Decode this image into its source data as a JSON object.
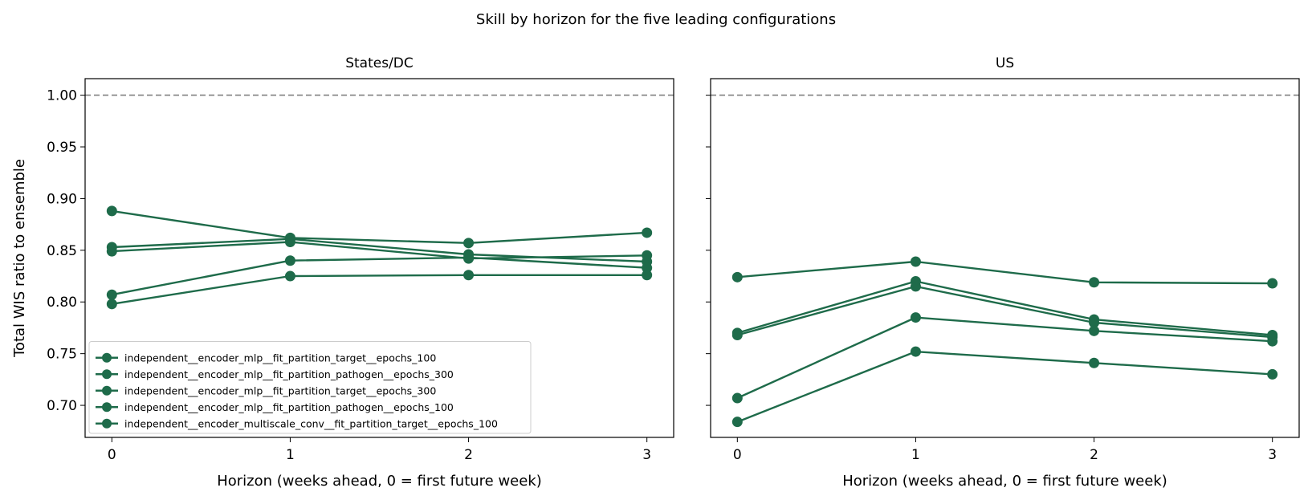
{
  "title": "Skill by horizon for the five leading configurations",
  "colors": {
    "series": "#1e6b4a",
    "reference": "#808080"
  },
  "chart_data": [
    {
      "type": "line",
      "title": "States/DC",
      "xlabel": "Horizon (weeks ahead, 0 = first future week)",
      "ylabel": "Total WIS ratio to ensemble",
      "x": [
        0,
        1,
        2,
        3
      ],
      "xticks": [
        "0",
        "1",
        "2",
        "3"
      ],
      "yticks": [
        "0.70",
        "0.75",
        "0.80",
        "0.85",
        "0.90",
        "0.95",
        "1.00"
      ],
      "xlim": [
        -0.15,
        3.15
      ],
      "ylim": [
        0.669,
        1.016
      ],
      "reference_line": 1.0,
      "legend": "lower-left",
      "series": [
        {
          "name": "independent__encoder_mlp__fit_partition_target__epochs_100",
          "values": [
            0.888,
            0.862,
            0.857,
            0.867
          ]
        },
        {
          "name": "independent__encoder_mlp__fit_partition_pathogen__epochs_300",
          "values": [
            0.853,
            0.861,
            0.846,
            0.839
          ]
        },
        {
          "name": "independent__encoder_mlp__fit_partition_target__epochs_300",
          "values": [
            0.849,
            0.858,
            0.842,
            0.845
          ]
        },
        {
          "name": "independent__encoder_mlp__fit_partition_pathogen__epochs_100",
          "values": [
            0.807,
            0.84,
            0.843,
            0.833
          ]
        },
        {
          "name": "independent__encoder_multiscale_conv__fit_partition_target__epochs_100",
          "values": [
            0.798,
            0.825,
            0.826,
            0.826
          ]
        }
      ]
    },
    {
      "type": "line",
      "title": "US",
      "xlabel": "Horizon (weeks ahead, 0 = first future week)",
      "ylabel": "",
      "x": [
        0,
        1,
        2,
        3
      ],
      "xticks": [
        "0",
        "1",
        "2",
        "3"
      ],
      "yticks": [
        "0.70",
        "0.75",
        "0.80",
        "0.85",
        "0.90",
        "0.95",
        "1.00"
      ],
      "xlim": [
        -0.15,
        3.15
      ],
      "ylim": [
        0.669,
        1.016
      ],
      "reference_line": 1.0,
      "series": [
        {
          "values": [
            0.824,
            0.839,
            0.819,
            0.818
          ]
        },
        {
          "values": [
            0.77,
            0.82,
            0.783,
            0.768
          ]
        },
        {
          "values": [
            0.768,
            0.815,
            0.78,
            0.766
          ]
        },
        {
          "values": [
            0.707,
            0.785,
            0.772,
            0.762
          ]
        },
        {
          "values": [
            0.684,
            0.752,
            0.741,
            0.73
          ]
        }
      ]
    }
  ]
}
